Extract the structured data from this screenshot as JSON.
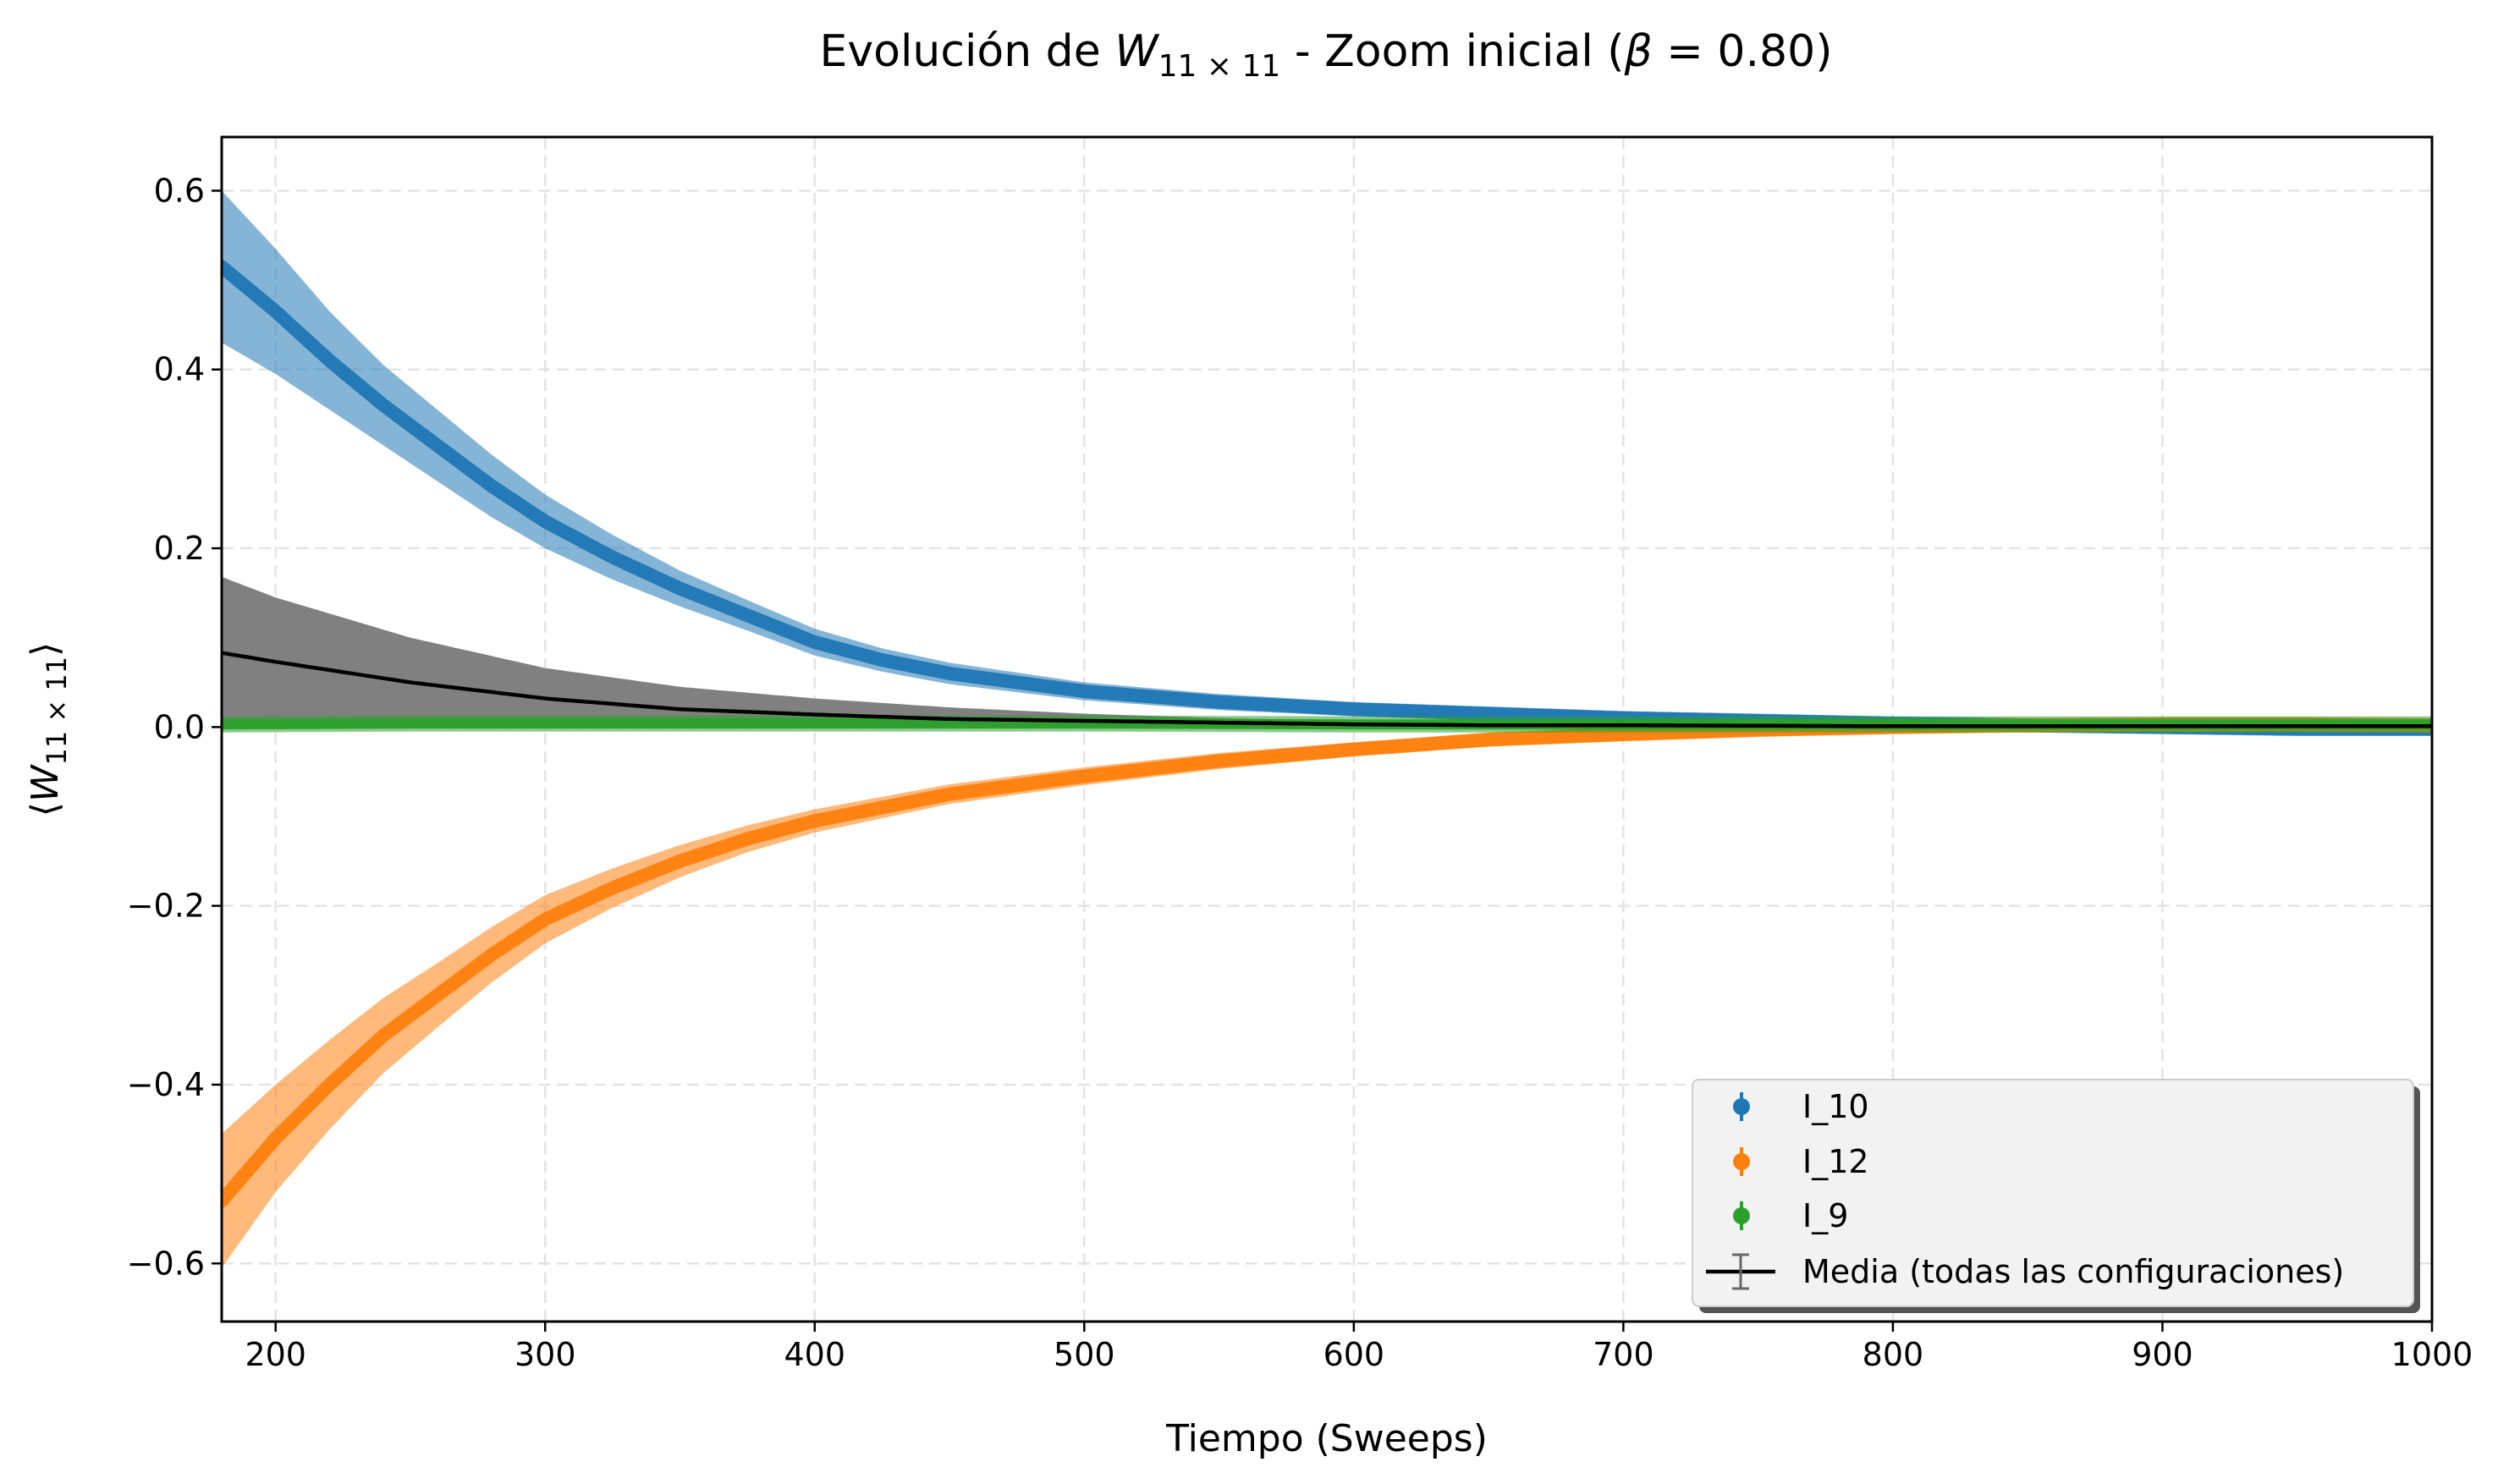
{
  "chart_data": {
    "type": "line",
    "title_prefix": "Evolución de ",
    "title_var": "W",
    "title_sub": "11 × 11",
    "title_mid": " - Zoom inicial (",
    "title_beta": "β",
    "title_eq": " = 0.80)",
    "xlabel": "Tiempo (Sweeps)",
    "ylabel_var": "W",
    "ylabel_sub": "11 × 11",
    "xlim": [
      180,
      1000
    ],
    "ylim": [
      -0.665,
      0.66
    ],
    "x_ticks": [
      200,
      300,
      400,
      500,
      600,
      700,
      800,
      900,
      1000
    ],
    "x_tick_labels": [
      "200",
      "300",
      "400",
      "500",
      "600",
      "700",
      "800",
      "900",
      "1000"
    ],
    "y_ticks": [
      -0.6,
      -0.4,
      -0.2,
      0.0,
      0.2,
      0.4,
      0.6
    ],
    "y_tick_labels": [
      "−0.6",
      "−0.4",
      "−0.2",
      "0.0",
      "0.2",
      "0.4",
      "0.6"
    ],
    "grid": true,
    "legend_position": "lower right",
    "series": [
      {
        "name": "I_10",
        "color": "#1f77b4",
        "x": [
          180,
          200,
          220,
          240,
          260,
          280,
          300,
          325,
          350,
          375,
          400,
          425,
          450,
          500,
          550,
          600,
          650,
          700,
          750,
          800,
          850,
          900,
          950,
          1000
        ],
        "y": [
          0.515,
          0.465,
          0.41,
          0.36,
          0.315,
          0.27,
          0.23,
          0.19,
          0.155,
          0.125,
          0.095,
          0.075,
          0.06,
          0.04,
          0.028,
          0.02,
          0.015,
          0.01,
          0.007,
          0.004,
          0.002,
          0.0,
          -0.002,
          -0.002
        ],
        "err": [
          0.085,
          0.07,
          0.055,
          0.045,
          0.04,
          0.035,
          0.03,
          0.025,
          0.02,
          0.017,
          0.015,
          0.013,
          0.012,
          0.01,
          0.009,
          0.008,
          0.008,
          0.008,
          0.008,
          0.008,
          0.008,
          0.008,
          0.008,
          0.008
        ]
      },
      {
        "name": "I_12",
        "color": "#ff7f0e",
        "x": [
          180,
          200,
          220,
          240,
          260,
          280,
          300,
          325,
          350,
          375,
          400,
          450,
          500,
          550,
          600,
          650,
          700,
          750,
          800,
          850,
          900,
          950,
          1000
        ],
        "y": [
          -0.53,
          -0.46,
          -0.4,
          -0.345,
          -0.3,
          -0.255,
          -0.215,
          -0.18,
          -0.15,
          -0.125,
          -0.105,
          -0.075,
          -0.055,
          -0.038,
          -0.025,
          -0.014,
          -0.008,
          -0.003,
          0.0,
          0.002,
          0.003,
          0.003,
          0.002
        ],
        "err": [
          0.075,
          0.06,
          0.05,
          0.042,
          0.036,
          0.031,
          0.027,
          0.022,
          0.018,
          0.015,
          0.013,
          0.011,
          0.01,
          0.009,
          0.008,
          0.008,
          0.008,
          0.008,
          0.008,
          0.008,
          0.008,
          0.008,
          0.008
        ]
      },
      {
        "name": "I_9",
        "color": "#2ca02c",
        "x": [
          180,
          250,
          300,
          400,
          500,
          600,
          700,
          800,
          900,
          1000
        ],
        "y": [
          0.003,
          0.004,
          0.004,
          0.004,
          0.004,
          0.003,
          0.003,
          0.003,
          0.003,
          0.003
        ],
        "err": [
          0.009,
          0.009,
          0.009,
          0.009,
          0.009,
          0.009,
          0.009,
          0.009,
          0.009,
          0.009
        ]
      },
      {
        "name": "Media (todas las configuraciones)",
        "color": "#000000",
        "band_color": "#808080",
        "x": [
          180,
          200,
          250,
          300,
          350,
          400,
          450,
          500,
          550,
          600,
          650,
          700,
          800,
          900,
          1000
        ],
        "y": [
          0.083,
          0.073,
          0.05,
          0.032,
          0.02,
          0.014,
          0.009,
          0.007,
          0.005,
          0.003,
          0.002,
          0.002,
          0.001,
          0.001,
          0.001
        ],
        "lower": [
          0.0,
          0.0,
          0.0,
          0.0,
          0.0,
          0.0,
          0.0,
          0.0,
          0.0,
          0.0,
          0.0,
          0.0,
          0.0,
          0.0,
          0.0
        ],
        "upper": [
          0.168,
          0.145,
          0.1,
          0.066,
          0.045,
          0.032,
          0.022,
          0.015,
          0.01,
          0.007,
          0.005,
          0.004,
          0.003,
          0.002,
          0.002
        ]
      }
    ]
  }
}
